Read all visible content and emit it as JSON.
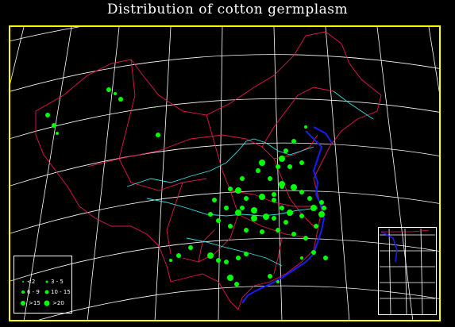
{
  "title": "Distribution of cotton germplasm",
  "colors": {
    "background": "#000000",
    "frame": "#ffff00",
    "graticule": "#ffffff",
    "boundary": "#e8184a",
    "river": "#32e0e0",
    "coast": "#1a1aff",
    "site": "#00ff00"
  },
  "legend": {
    "items": [
      {
        "label": "<2"
      },
      {
        "label": "3 - 5"
      },
      {
        "label": "6 - 9"
      },
      {
        "label": "10 - 15"
      },
      {
        "label": ">15"
      },
      {
        "label": ">20"
      }
    ]
  }
}
